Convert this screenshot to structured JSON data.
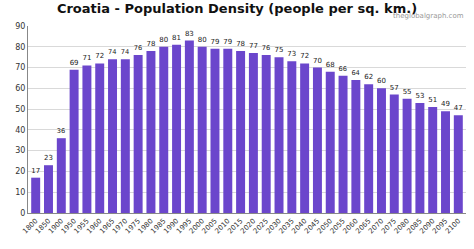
{
  "chart_data": {
    "type": "bar",
    "title": "Croatia - Population Density (people per sq. km.)",
    "categories": [
      "1800",
      "1850",
      "1900",
      "1950",
      "1955",
      "1960",
      "1965",
      "1970",
      "1975",
      "1980",
      "1985",
      "1990",
      "1995",
      "2000",
      "2005",
      "2010",
      "2015",
      "2020",
      "2025",
      "2030",
      "2035",
      "2040",
      "2045",
      "2050",
      "2055",
      "2060",
      "2065",
      "2070",
      "2075",
      "2080",
      "2085",
      "2090",
      "2095",
      "2100"
    ],
    "values": [
      17,
      23,
      36,
      69,
      71,
      72,
      74,
      74,
      76,
      78,
      80,
      81,
      83,
      80,
      79,
      79,
      78,
      77,
      76,
      75,
      73,
      72,
      70,
      68,
      66,
      64,
      62,
      60,
      57,
      55,
      53,
      51,
      49,
      47
    ],
    "color": "#6b46cc",
    "ylim": [
      0,
      90
    ],
    "yticks": [
      0,
      10,
      20,
      30,
      40,
      50,
      60,
      70,
      80,
      90
    ],
    "grid": true,
    "data_labels": true,
    "annotations": [
      "theglobalgraph.com"
    ]
  }
}
